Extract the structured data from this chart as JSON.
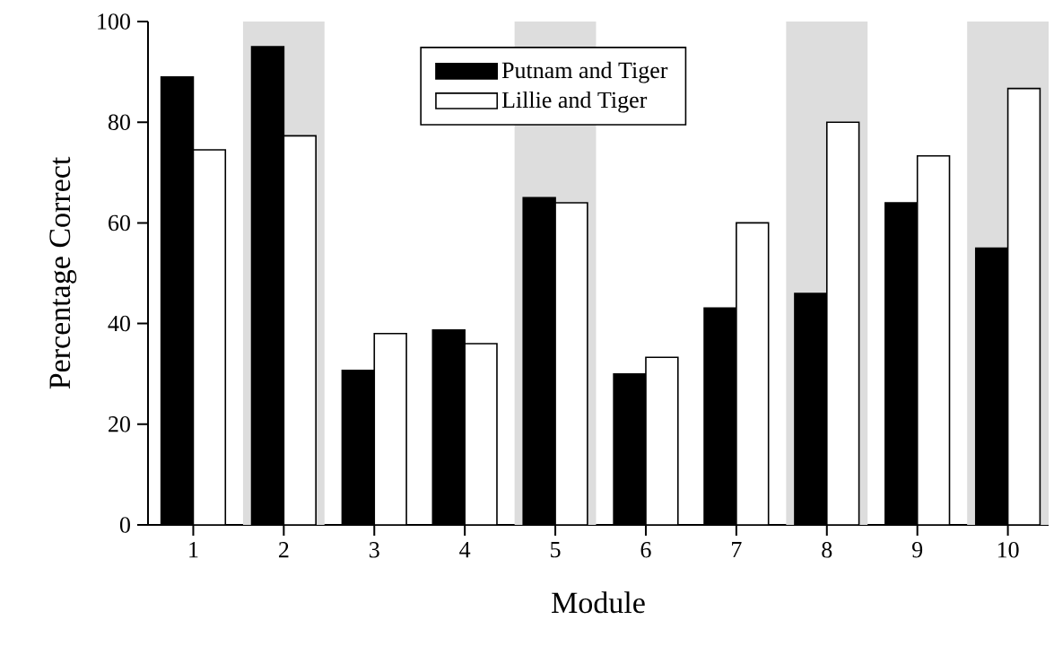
{
  "chart_data": {
    "type": "bar",
    "xlabel": "Module",
    "ylabel": "Percentage Correct",
    "x": [
      1,
      2,
      3,
      4,
      5,
      6,
      7,
      8,
      9,
      10
    ],
    "series": [
      {
        "name": "Putnam and Tiger",
        "color": "#000000",
        "values": [
          89,
          95,
          30.7,
          38.7,
          65,
          30,
          43.1,
          46,
          64,
          55
        ]
      },
      {
        "name": "Lillie and Tiger",
        "color": "#ffffff",
        "values": [
          74.5,
          77.3,
          38,
          36,
          64,
          33.3,
          60,
          80,
          73.3,
          86.7
        ]
      }
    ],
    "xlim": [
      0.5,
      10.45
    ],
    "xticks": [
      1,
      2,
      3,
      4,
      5,
      6,
      7,
      8,
      9,
      10
    ],
    "ylim": [
      0,
      100
    ],
    "yticks": [
      0,
      20,
      40,
      60,
      80,
      100
    ],
    "bands": [
      {
        "axis": "x",
        "from": 1.55,
        "to": 2.45,
        "color": "#dddddd"
      },
      {
        "axis": "x",
        "from": 4.55,
        "to": 5.45,
        "color": "#dddddd"
      },
      {
        "axis": "x",
        "from": 7.55,
        "to": 8.45,
        "color": "#dddddd"
      },
      {
        "axis": "x",
        "from": 9.55,
        "to": 10.45,
        "color": "#dddddd"
      }
    ],
    "grid": false,
    "legend": "top"
  }
}
